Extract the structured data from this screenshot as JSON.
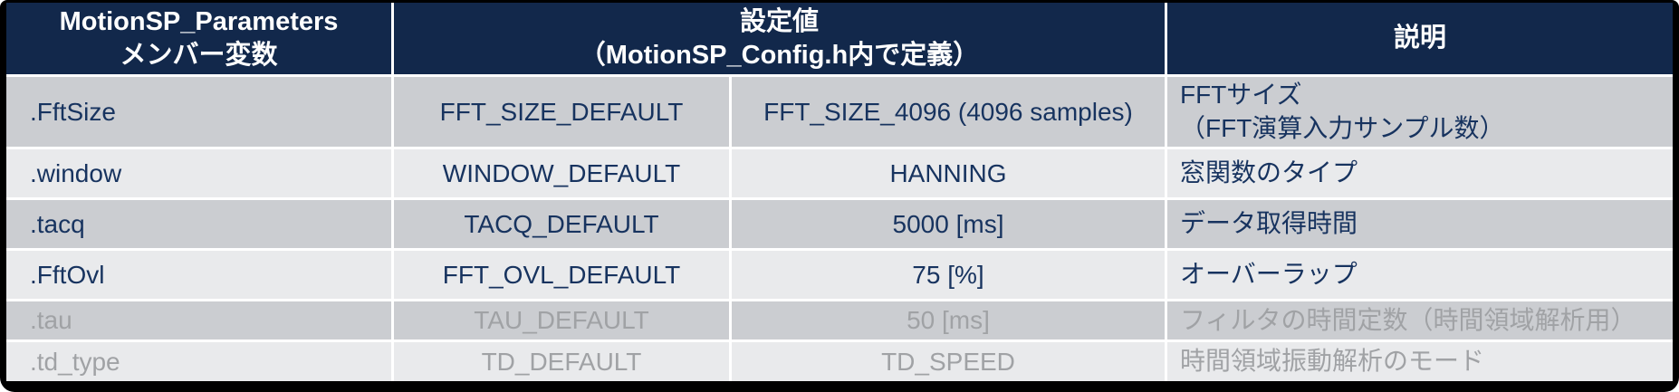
{
  "colors": {
    "header_bg": "#12284B",
    "row_odd_bg": "#CBCDD1",
    "row_even_bg": "#E9EAEC",
    "text_active": "#17335F",
    "text_disabled": "#A0A2A5",
    "frame": "#000000",
    "gridline": "#FFFFFF"
  },
  "table": {
    "header": {
      "member_line1": "MotionSP_Parameters",
      "member_line2": "メンバー変数",
      "setting_line1": "設定値",
      "setting_line2": "（MotionSP_Config.h内で定義）",
      "description": "説明"
    },
    "rows": [
      {
        "member": ".FftSize",
        "default_macro": "FFT_SIZE_DEFAULT",
        "value": "FFT_SIZE_4096 (4096 samples)",
        "desc": "FFTサイズ",
        "desc2": "（FFT演算入力サンプル数）",
        "state": "active"
      },
      {
        "member": ".window",
        "default_macro": "WINDOW_DEFAULT",
        "value": "HANNING",
        "desc": "窓関数のタイプ",
        "state": "active"
      },
      {
        "member": ".tacq",
        "default_macro": "TACQ_DEFAULT",
        "value": "5000 [ms]",
        "desc": "データ取得時間",
        "state": "active"
      },
      {
        "member": ".FftOvl",
        "default_macro": "FFT_OVL_DEFAULT",
        "value": "75 [%]",
        "desc": "オーバーラップ",
        "state": "active"
      },
      {
        "member": ".tau",
        "default_macro": "TAU_DEFAULT",
        "value": "50 [ms]",
        "desc": "フィルタの時間定数（時間領域解析用）",
        "state": "disabled"
      },
      {
        "member": ".td_type",
        "default_macro": "TD_DEFAULT",
        "value": "TD_SPEED",
        "desc": "時間領域振動解析のモード",
        "state": "disabled"
      }
    ]
  }
}
